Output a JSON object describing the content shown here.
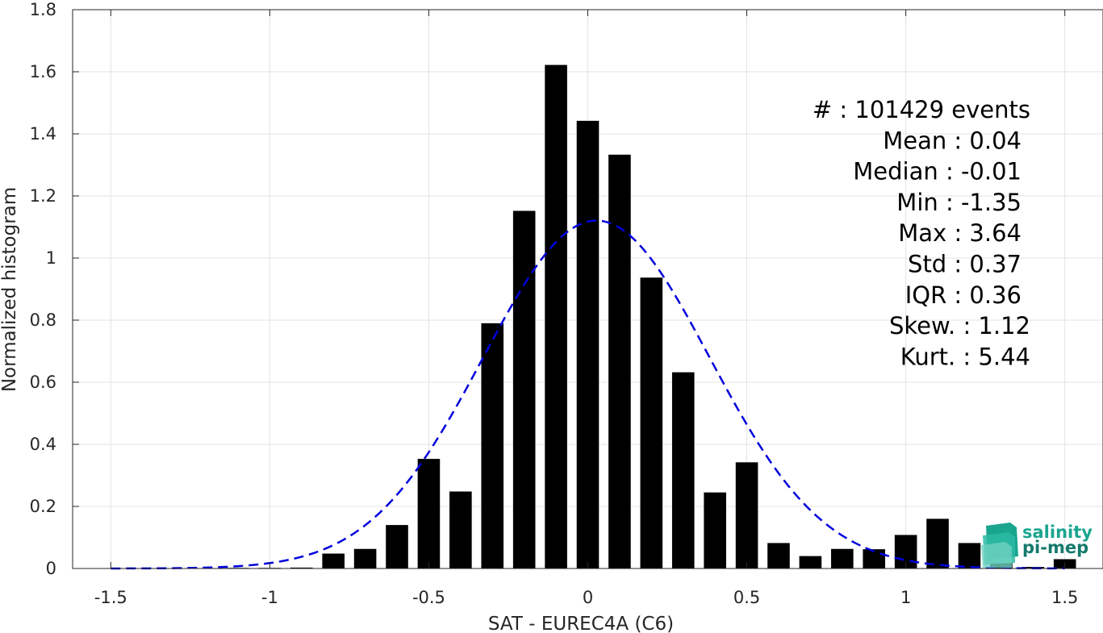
{
  "chart_data": {
    "type": "bar",
    "xlabel": "SAT - EUREC4A (C6)",
    "ylabel": "Normalized histogram",
    "xlim": [
      -1.62,
      1.62
    ],
    "ylim": [
      0,
      1.8
    ],
    "xticks": [
      -1.5,
      -1,
      -0.5,
      0,
      0.5,
      1,
      1.5
    ],
    "xtick_labels": [
      "-1.5",
      "-1",
      "-0.5",
      "0",
      "0.5",
      "1",
      "1.5"
    ],
    "yticks": [
      0,
      0.2,
      0.4,
      0.6,
      0.8,
      1,
      1.2,
      1.4,
      1.6,
      1.8
    ],
    "ytick_labels": [
      "0",
      "0.2",
      "0.4",
      "0.6",
      "0.8",
      "1",
      "1.2",
      "1.4",
      "1.6",
      "1.8"
    ],
    "grid": true,
    "bar_width": 0.07,
    "bars": {
      "x": [
        -1.2,
        -1.1,
        -1.0,
        -0.9,
        -0.8,
        -0.7,
        -0.6,
        -0.5,
        -0.4,
        -0.3,
        -0.2,
        -0.1,
        0.0,
        0.1,
        0.2,
        0.3,
        0.4,
        0.5,
        0.6,
        0.7,
        0.8,
        0.9,
        1.0,
        1.1,
        1.2,
        1.3,
        1.4,
        1.5
      ],
      "values": [
        0.001,
        0.002,
        0.002,
        0.003,
        0.048,
        0.063,
        0.14,
        0.353,
        0.248,
        0.79,
        1.152,
        1.622,
        1.442,
        1.333,
        0.937,
        0.632,
        0.245,
        0.342,
        0.082,
        0.04,
        0.063,
        0.062,
        0.108,
        0.16,
        0.082,
        0.018,
        0.005,
        0.03
      ],
      "color": "#000000"
    },
    "fit_curve": {
      "style": "dashed",
      "color": "#0000dd",
      "mean": 0.027,
      "std": 0.356,
      "x_range": [
        -1.5,
        1.5
      ]
    },
    "stats": [
      {
        "label": "#  : 101429 events",
        "align_x": 1277
      },
      {
        "label": "Mean : 0.04",
        "align_x": 1266
      },
      {
        "label": "Median : -0.01",
        "align_x": 1266
      },
      {
        "label": "Min : -1.35",
        "align_x": 1266
      },
      {
        "label": "Max : 3.64",
        "align_x": 1266
      },
      {
        "label": "Std : 0.37",
        "align_x": 1266
      },
      {
        "label": "IQR : 0.36",
        "align_x": 1266
      },
      {
        "label": "Skew. : 1.12",
        "align_x": 1277
      },
      {
        "label": "Kurt. : 5.44",
        "align_x": 1277
      }
    ]
  },
  "logo": {
    "line1": "salinity",
    "line2": "pi-mep",
    "color1": "#1aa58f",
    "color2": "#137a6c"
  }
}
